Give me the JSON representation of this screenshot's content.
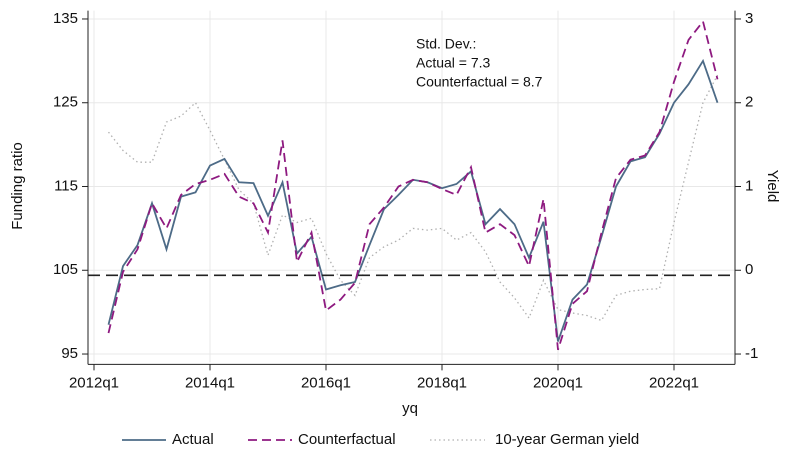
{
  "chart_data": {
    "type": "line",
    "x": [
      "2012q2",
      "2012q3",
      "2012q4",
      "2013q1",
      "2013q2",
      "2013q3",
      "2013q4",
      "2014q1",
      "2014q2",
      "2014q3",
      "2014q4",
      "2015q1",
      "2015q2",
      "2015q3",
      "2015q4",
      "2016q1",
      "2016q2",
      "2016q3",
      "2016q4",
      "2017q1",
      "2017q2",
      "2017q3",
      "2017q4",
      "2018q1",
      "2018q2",
      "2018q3",
      "2018q4",
      "2019q1",
      "2019q2",
      "2019q3",
      "2019q4",
      "2020q1",
      "2020q2",
      "2020q3",
      "2020q4",
      "2021q1",
      "2021q2",
      "2021q3",
      "2021q4",
      "2022q1",
      "2022q2",
      "2022q3",
      "2022q4"
    ],
    "series": [
      {
        "name": "Actual",
        "color": "#4d6b87",
        "dash": "solid",
        "values": [
          98.5,
          105.5,
          108,
          113,
          107.5,
          113.8,
          114.3,
          117.5,
          118.3,
          115.5,
          115.4,
          111.5,
          115.5,
          107,
          109,
          102.7,
          103.2,
          103.6,
          108,
          112.3,
          114,
          115.8,
          115.5,
          114.8,
          115.3,
          116.8,
          110.5,
          112.3,
          110.5,
          106.5,
          110.8,
          96.5,
          101.5,
          103.3,
          109,
          115,
          118,
          118.5,
          121.3,
          125,
          127.2,
          130,
          125
        ]
      },
      {
        "name": "Counterfactual",
        "color": "#8e1a80",
        "dash": "dashed",
        "values": [
          97.5,
          104.8,
          107.5,
          113,
          110,
          114,
          115.3,
          115.8,
          116.5,
          113.8,
          113,
          109.5,
          120.5,
          106,
          109.5,
          100.2,
          101.5,
          103.5,
          110.5,
          112.5,
          115,
          115.8,
          115.5,
          114.7,
          114,
          117.3,
          109.5,
          110.5,
          109.2,
          105.5,
          113.5,
          95.5,
          101,
          102.5,
          109.5,
          116,
          118.2,
          118.7,
          121.5,
          127.5,
          132.5,
          134.7,
          127.8
        ]
      },
      {
        "name": "10-year German yield",
        "color": "#b0b0b0",
        "dash": "dotted",
        "axis": "y2",
        "values": [
          1.65,
          1.43,
          1.29,
          1.29,
          1.77,
          1.84,
          2.0,
          1.67,
          1.32,
          0.96,
          0.8,
          0.18,
          0.66,
          0.57,
          0.62,
          0.2,
          -0.12,
          -0.3,
          0.15,
          0.28,
          0.36,
          0.5,
          0.48,
          0.5,
          0.36,
          0.45,
          0.22,
          -0.14,
          -0.33,
          -0.57,
          -0.12,
          -0.47,
          -0.51,
          -0.54,
          -0.6,
          -0.3,
          -0.25,
          -0.23,
          -0.22,
          0.57,
          1.29,
          2.0,
          2.33
        ]
      }
    ],
    "xlabel": "yq",
    "ylabel": "Funding ratio",
    "y2label": "Yield",
    "xlim": [
      "2012q1",
      "2023q1"
    ],
    "xticks": [
      "2012q1",
      "2014q1",
      "2016q1",
      "2018q1",
      "2020q1",
      "2022q1"
    ],
    "ylim": [
      94,
      136
    ],
    "yticks": [
      95,
      105,
      115,
      125,
      135
    ],
    "y2lim": [
      -1.1,
      3.1
    ],
    "y2ticks": [
      -1,
      0,
      1,
      2,
      3
    ],
    "hline": 104.4,
    "grid": true,
    "annotation": [
      "Std. Dev.:",
      "Actual =  7.3",
      "Counterfactual = 8.7"
    ],
    "legend": "bottom"
  }
}
